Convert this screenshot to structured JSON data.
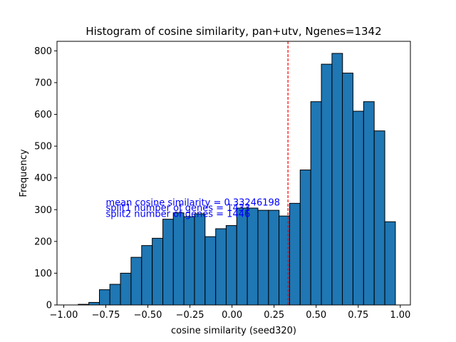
{
  "chart_data": {
    "type": "bar",
    "title": "Histogram of cosine similarity, pan+utv, Ngenes=1342",
    "xlabel": "cosine similarity (seed320)",
    "ylabel": "Frequency",
    "xlim": [
      -1.04,
      1.06
    ],
    "ylim": [
      0,
      830
    ],
    "bin_width": 0.0628,
    "bin_starts": [
      -0.914,
      -0.851,
      -0.788,
      -0.726,
      -0.663,
      -0.6,
      -0.537,
      -0.474,
      -0.411,
      -0.349,
      -0.286,
      -0.223,
      -0.16,
      -0.097,
      -0.035,
      0.028,
      0.091,
      0.154,
      0.217,
      0.279,
      0.342,
      0.405,
      0.468,
      0.531,
      0.594,
      0.656,
      0.719,
      0.782,
      0.845,
      0.908
    ],
    "values": [
      2,
      8,
      48,
      65,
      100,
      150,
      187,
      210,
      270,
      290,
      278,
      287,
      215,
      240,
      250,
      305,
      305,
      298,
      298,
      280,
      320,
      425,
      640,
      758,
      792,
      730,
      610,
      640,
      548,
      262
    ],
    "xticks": [
      -1.0,
      -0.75,
      -0.5,
      -0.25,
      0.0,
      0.25,
      0.5,
      0.75,
      1.0
    ],
    "xtick_labels": [
      "−1.00",
      "−0.75",
      "−0.50",
      "−0.25",
      "0.00",
      "0.25",
      "0.50",
      "0.75",
      "1.00"
    ],
    "yticks": [
      0,
      100,
      200,
      300,
      400,
      500,
      600,
      700,
      800
    ],
    "ytick_labels": [
      "0",
      "100",
      "200",
      "300",
      "400",
      "500",
      "600",
      "700",
      "800"
    ],
    "mean_line": {
      "x": 0.33246198,
      "color": "#ff0000"
    },
    "bar_color": "#1f77b4",
    "edge_color": "#000000",
    "annotations": [
      {
        "text": "mean cosine similarity = 0.33246198",
        "x": -0.75,
        "y": 313
      },
      {
        "text": "split1 number of genes = 1433",
        "x": -0.75,
        "y": 296
      },
      {
        "text": "split2 number of genes = 1446",
        "x": -0.75,
        "y": 277
      }
    ],
    "annotation_color": "#0000ff",
    "grid": false,
    "legend": "none"
  }
}
